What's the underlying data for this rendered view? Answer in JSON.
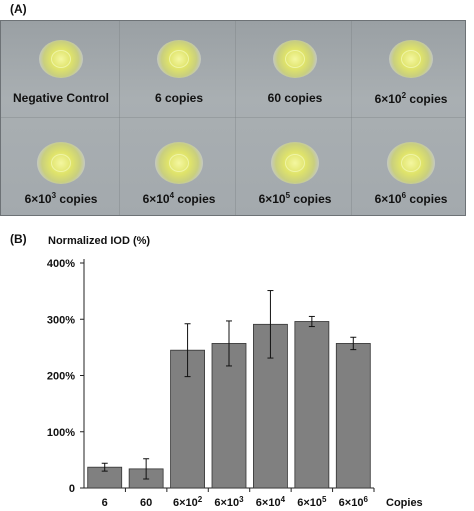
{
  "panel_a": {
    "label": "(A)",
    "samples": [
      {
        "label": "Negative Control"
      },
      {
        "label": "6 copies"
      },
      {
        "label": "60 copies"
      },
      {
        "label_base": "6×10",
        "exp": "2",
        "label_suffix": " copies"
      },
      {
        "label_base": "6×10",
        "exp": "3",
        "label_suffix": " copies"
      },
      {
        "label_base": "6×10",
        "exp": "4",
        "label_suffix": " copies"
      },
      {
        "label_base": "6×10",
        "exp": "5",
        "label_suffix": " copies"
      },
      {
        "label_base": "6×10",
        "exp": "6",
        "label_suffix": " copies"
      }
    ]
  },
  "panel_b": {
    "label": "(B)"
  },
  "chart_data": {
    "type": "bar",
    "title": "",
    "ylabel": "Normalized IOD (%)",
    "xlabel": "Copies",
    "ylim": [
      0,
      400
    ],
    "yticks": [
      0,
      100,
      200,
      300,
      400
    ],
    "ytick_labels": [
      "0",
      "100%",
      "200%",
      "300%",
      "400%"
    ],
    "categories": [
      {
        "base": "6",
        "exp": ""
      },
      {
        "base": "60",
        "exp": ""
      },
      {
        "base": "6×10",
        "exp": "2"
      },
      {
        "base": "6×10",
        "exp": "3"
      },
      {
        "base": "6×10",
        "exp": "4"
      },
      {
        "base": "6×10",
        "exp": "5"
      },
      {
        "base": "6×10",
        "exp": "6"
      }
    ],
    "values": [
      37,
      34,
      245,
      257,
      291,
      296,
      257
    ],
    "errors": [
      7,
      18,
      47,
      40,
      60,
      9,
      11
    ],
    "bar_color": "#808080",
    "grid": false,
    "legend": "none"
  }
}
